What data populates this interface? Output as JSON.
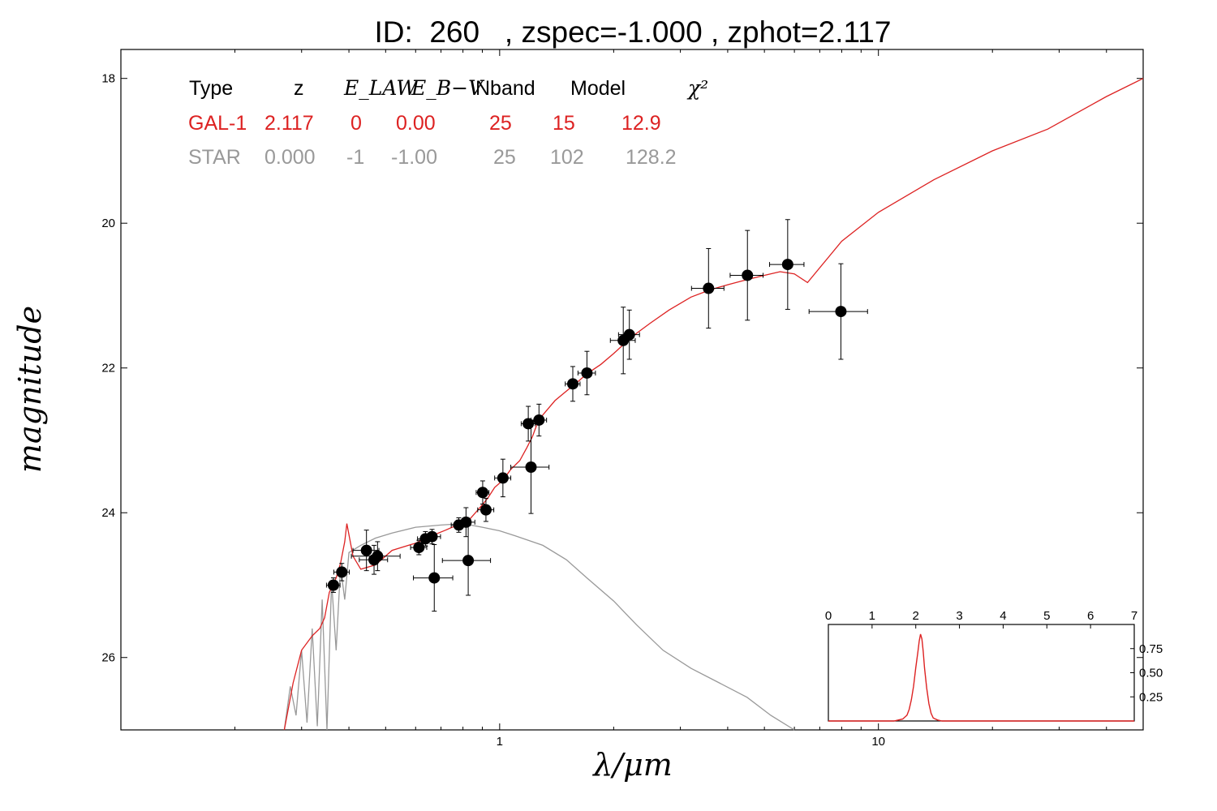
{
  "chart_data": [
    {
      "type": "scatter",
      "title": "ID:  260   , zspec=-1.000 , zphot=2.117",
      "xlabel": "λ/μm",
      "ylabel": "magnitude",
      "xscale": "log",
      "xlim": [
        0.1,
        50
      ],
      "ylim": [
        27,
        17.6
      ],
      "y_inverted": true,
      "xticks": [
        1,
        10
      ],
      "xtick_labels": [
        "1",
        "10"
      ],
      "yticks": [
        18,
        20,
        22,
        24,
        26
      ],
      "ytick_labels": [
        "18",
        "20",
        "22",
        "24",
        "26"
      ],
      "legend": {
        "placement": "top-left",
        "headers": [
          "Type",
          "z",
          "E_LAW",
          "E_B−V",
          "Nband",
          "Model",
          "χ²"
        ],
        "rows": [
          {
            "cells": [
              "GAL-1",
              "2.117",
              "0",
              "0.00",
              "25",
              "15",
              "12.9"
            ],
            "color": "#dd2222"
          },
          {
            "cells": [
              "STAR",
              "0.000",
              "-1",
              "-1.00",
              "25",
              "102",
              "128.2"
            ],
            "color": "#999999"
          }
        ]
      },
      "series": [
        {
          "kind": "points",
          "color": "#000000",
          "points": [
            {
              "x": 0.364,
              "y": 25.0,
              "xerr": 0.015,
              "yerr": 0.1
            },
            {
              "x": 0.383,
              "y": 24.82,
              "xerr": 0.018,
              "yerr": 0.12
            },
            {
              "x": 0.445,
              "y": 24.52,
              "xerr": 0.035,
              "yerr": 0.28
            },
            {
              "x": 0.466,
              "y": 24.65,
              "xerr": 0.04,
              "yerr": 0.2
            },
            {
              "x": 0.476,
              "y": 24.6,
              "xerr": 0.07,
              "yerr": 0.2
            },
            {
              "x": 0.612,
              "y": 24.48,
              "xerr": 0.03,
              "yerr": 0.1
            },
            {
              "x": 0.637,
              "y": 24.36,
              "xerr": 0.03,
              "yerr": 0.1
            },
            {
              "x": 0.663,
              "y": 24.33,
              "xerr": 0.035,
              "yerr": 0.1
            },
            {
              "x": 0.672,
              "y": 24.9,
              "xerr": 0.08,
              "yerr": 0.46
            },
            {
              "x": 0.78,
              "y": 24.17,
              "xerr": 0.035,
              "yerr": 0.1
            },
            {
              "x": 0.815,
              "y": 24.13,
              "xerr": 0.045,
              "yerr": 0.2
            },
            {
              "x": 0.826,
              "y": 24.66,
              "xerr": 0.12,
              "yerr": 0.48
            },
            {
              "x": 0.902,
              "y": 23.72,
              "xerr": 0.035,
              "yerr": 0.16
            },
            {
              "x": 0.92,
              "y": 23.96,
              "xerr": 0.045,
              "yerr": 0.16
            },
            {
              "x": 1.02,
              "y": 23.52,
              "xerr": 0.05,
              "yerr": 0.26
            },
            {
              "x": 1.19,
              "y": 22.77,
              "xerr": 0.05,
              "yerr": 0.24
            },
            {
              "x": 1.21,
              "y": 23.37,
              "xerr": 0.14,
              "yerr": 0.64
            },
            {
              "x": 1.27,
              "y": 22.72,
              "xerr": 0.06,
              "yerr": 0.22
            },
            {
              "x": 1.56,
              "y": 22.22,
              "xerr": 0.07,
              "yerr": 0.24
            },
            {
              "x": 1.7,
              "y": 22.07,
              "xerr": 0.09,
              "yerr": 0.3
            },
            {
              "x": 2.12,
              "y": 21.62,
              "xerr": 0.16,
              "yerr": 0.46
            },
            {
              "x": 2.2,
              "y": 21.54,
              "xerr": 0.14,
              "yerr": 0.34
            },
            {
              "x": 3.56,
              "y": 20.9,
              "xerr": 0.35,
              "yerr": 0.55
            },
            {
              "x": 4.51,
              "y": 20.72,
              "xerr": 0.45,
              "yerr": 0.62
            },
            {
              "x": 5.76,
              "y": 20.57,
              "xerr": 0.6,
              "yerr": 0.62
            },
            {
              "x": 7.96,
              "y": 21.22,
              "xerr": 1.4,
              "yerr": 0.66
            }
          ]
        },
        {
          "kind": "line",
          "color": "#dd2222",
          "x": [
            0.27,
            0.285,
            0.3,
            0.32,
            0.335,
            0.345,
            0.355,
            0.37,
            0.38,
            0.39,
            0.395,
            0.41,
            0.43,
            0.47,
            0.52,
            0.6,
            0.66,
            0.72,
            0.78,
            0.83,
            0.88,
            0.93,
            0.97,
            1.02,
            1.07,
            1.13,
            1.18,
            1.22,
            1.25,
            1.3,
            1.4,
            1.5,
            1.6,
            1.7,
            1.85,
            2.0,
            2.15,
            2.3,
            2.5,
            2.8,
            3.2,
            3.6,
            4.0,
            4.5,
            5.0,
            5.5,
            6.0,
            6.5,
            8.0,
            10.0,
            14.0,
            20.0,
            28.0,
            40.0,
            50.0
          ],
          "y": [
            27.0,
            26.35,
            25.9,
            25.7,
            25.6,
            25.45,
            25.1,
            24.9,
            24.7,
            24.4,
            24.15,
            24.6,
            24.78,
            24.72,
            24.52,
            24.42,
            24.32,
            24.24,
            24.16,
            24.1,
            23.95,
            23.8,
            23.65,
            23.55,
            23.4,
            23.28,
            23.1,
            22.95,
            22.8,
            22.65,
            22.45,
            22.32,
            22.2,
            22.08,
            21.95,
            21.8,
            21.65,
            21.52,
            21.38,
            21.2,
            21.02,
            20.92,
            20.85,
            20.78,
            20.72,
            20.67,
            20.7,
            20.82,
            20.25,
            19.85,
            19.4,
            19.0,
            18.7,
            18.25,
            18.0
          ]
        },
        {
          "kind": "line",
          "color": "#999999",
          "x": [
            0.27,
            0.28,
            0.29,
            0.3,
            0.31,
            0.32,
            0.33,
            0.34,
            0.35,
            0.36,
            0.37,
            0.38,
            0.39,
            0.4,
            0.43,
            0.47,
            0.52,
            0.6,
            0.7,
            0.8,
            0.9,
            1.0,
            1.1,
            1.3,
            1.5,
            1.7,
            2.0,
            2.3,
            2.7,
            3.2,
            3.8,
            4.5,
            5.2,
            6.0
          ],
          "y": [
            27.0,
            26.4,
            26.8,
            25.9,
            26.9,
            25.6,
            26.95,
            25.2,
            27.0,
            24.95,
            25.9,
            24.75,
            25.2,
            24.55,
            24.45,
            24.35,
            24.28,
            24.2,
            24.17,
            24.15,
            24.2,
            24.25,
            24.32,
            24.45,
            24.65,
            24.9,
            25.22,
            25.55,
            25.9,
            26.15,
            26.35,
            26.55,
            26.8,
            27.0
          ]
        }
      ]
    },
    {
      "type": "line",
      "title": "",
      "xlim": [
        0,
        7
      ],
      "ylim": [
        0,
        1.0
      ],
      "xticks": [
        0,
        1,
        2,
        3,
        4,
        5,
        6,
        7
      ],
      "xtick_labels": [
        "0",
        "1",
        "2",
        "3",
        "4",
        "5",
        "6",
        "7"
      ],
      "yticks": [
        0.25,
        0.5,
        0.75
      ],
      "ytick_labels": [
        "0.25",
        "0.50",
        "0.75"
      ],
      "xaxis_position": "top",
      "yaxis_position": "right",
      "series": [
        {
          "kind": "line",
          "color": "#dd2222",
          "x": [
            0,
            1.5,
            1.7,
            1.8,
            1.85,
            1.9,
            1.95,
            2.0,
            2.05,
            2.08,
            2.11,
            2.14,
            2.17,
            2.2,
            2.25,
            2.3,
            2.35,
            2.4,
            2.5,
            2.6,
            7.0
          ],
          "y": [
            0.0,
            0.0,
            0.02,
            0.06,
            0.12,
            0.22,
            0.36,
            0.55,
            0.72,
            0.83,
            0.9,
            0.85,
            0.72,
            0.55,
            0.34,
            0.18,
            0.08,
            0.03,
            0.01,
            0.0,
            0.0
          ]
        }
      ]
    }
  ]
}
